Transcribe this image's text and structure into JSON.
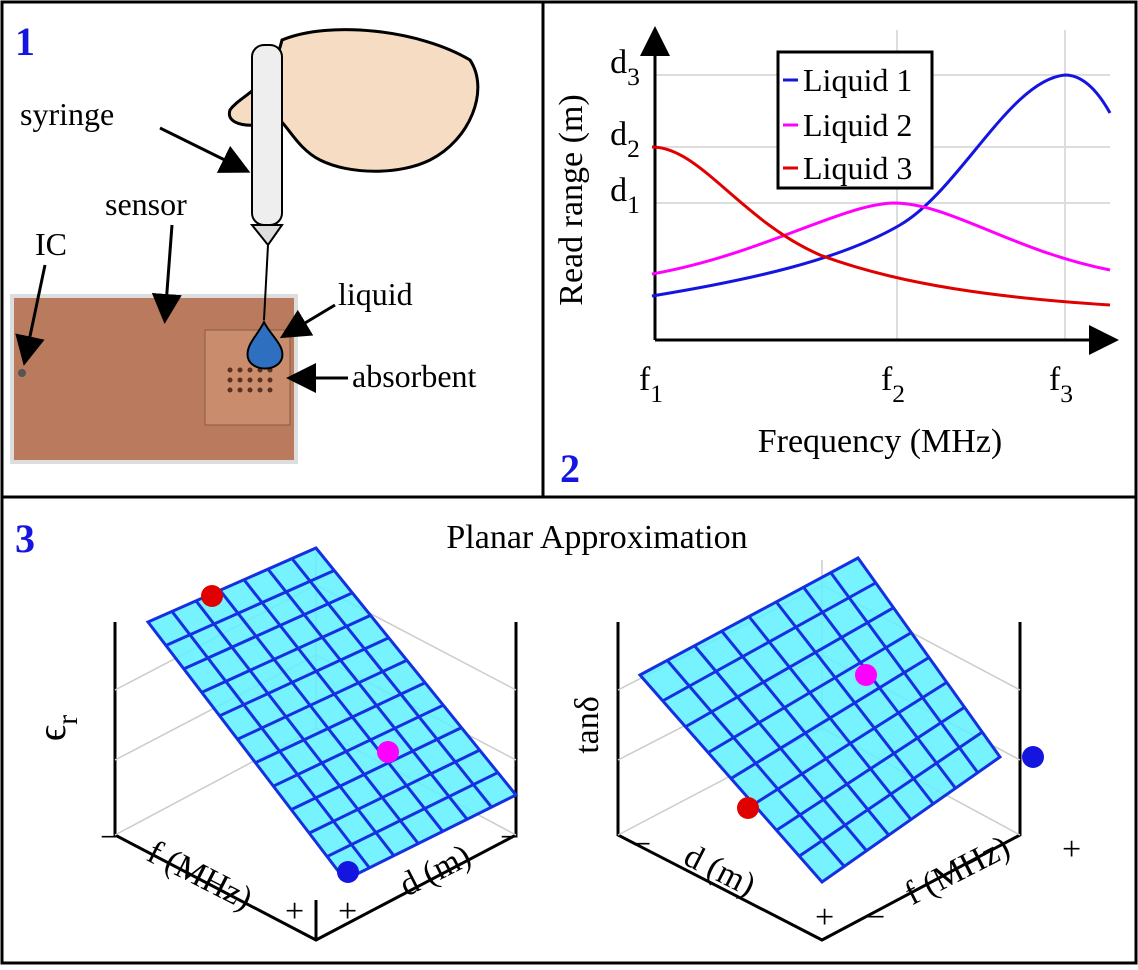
{
  "panel1": {
    "label": "1",
    "annotations": [
      "syringe",
      "sensor",
      "IC",
      "liquid",
      "absorbent"
    ]
  },
  "panel2": {
    "label": "2",
    "y_label": "Read range (m)",
    "x_label": "Frequency (MHz)",
    "x_ticks": [
      {
        "main": "f",
        "sub": "1"
      },
      {
        "main": "f",
        "sub": "2"
      },
      {
        "main": "f",
        "sub": "3"
      }
    ],
    "y_ticks": [
      {
        "main": "d",
        "sub": "3"
      },
      {
        "main": "d",
        "sub": "2"
      },
      {
        "main": "d",
        "sub": "1"
      }
    ],
    "legend": [
      "Liquid 1",
      "Liquid 2",
      "Liquid 3"
    ]
  },
  "panel3": {
    "label": "3",
    "title": "Planar Approximation",
    "left": {
      "z_label": {
        "main": "ϵ",
        "sub": "r"
      },
      "axis1": "f (MHz)",
      "axis2": "d (m)",
      "minus": "−",
      "plus": "+"
    },
    "right": {
      "z_label": "tanδ",
      "axis1": "d (m)",
      "axis2": "f (MHz)",
      "minus": "−",
      "plus": "+"
    }
  }
}
